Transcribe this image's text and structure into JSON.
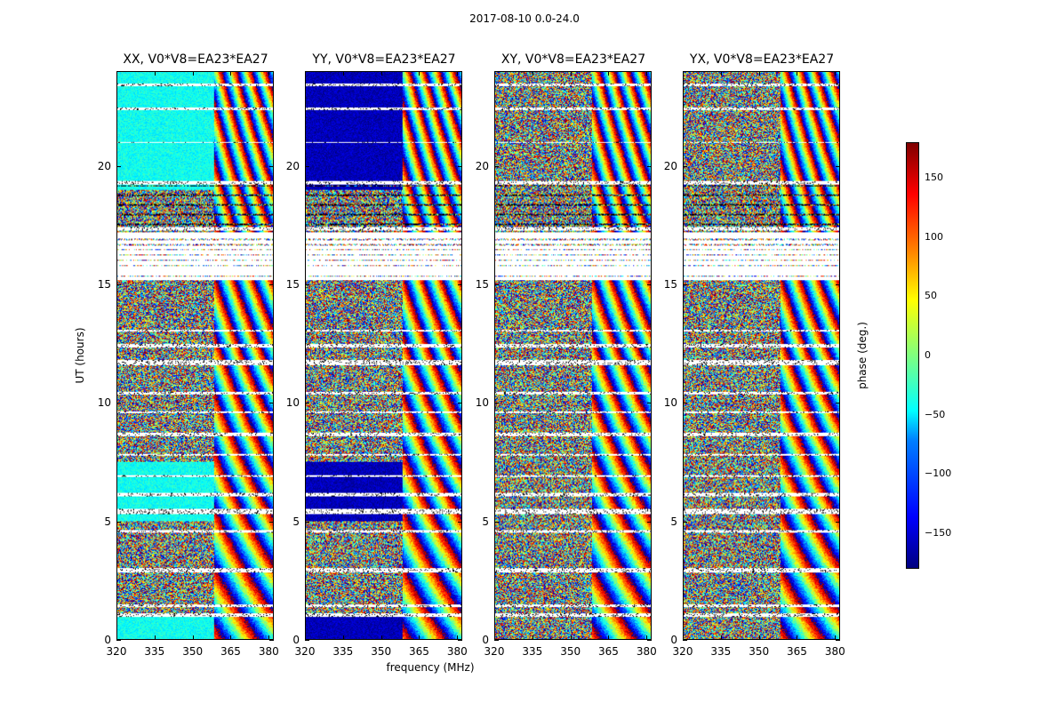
{
  "chart_data": {
    "type": "heatmap",
    "suptitle": "2017-08-10 0.0-24.0",
    "panels": [
      {
        "title": "XX, V0*V8=EA23*EA27",
        "dominant_phase_low_freq": -40,
        "seed": 11
      },
      {
        "title": "YY, V0*V8=EA23*EA27",
        "dominant_phase_low_freq": -160,
        "seed": 23
      },
      {
        "title": "XY, V0*V8=EA23*EA27",
        "dominant_phase_low_freq": 0,
        "seed": 37
      },
      {
        "title": "YX, V0*V8=EA23*EA27",
        "dominant_phase_low_freq": 0,
        "seed": 53
      }
    ],
    "x": {
      "label": "frequency (MHz)",
      "range": [
        320,
        382
      ],
      "ticks": [
        "320",
        "335",
        "350",
        "365",
        "380"
      ],
      "tick_values": [
        320,
        335,
        350,
        365,
        380
      ]
    },
    "y": {
      "label": "UT (hours)",
      "range": [
        0,
        24
      ],
      "ticks": [
        "0",
        "5",
        "10",
        "15",
        "20"
      ],
      "tick_values": [
        0,
        5,
        10,
        15,
        20
      ]
    },
    "colorbar": {
      "label": "phase (deg.)",
      "range": [
        -180,
        180
      ],
      "ticks": [
        "150",
        "100",
        "50",
        "0",
        "−50",
        "−100",
        "−150"
      ],
      "tick_values": [
        150,
        100,
        50,
        0,
        -50,
        -100,
        -150
      ],
      "colormap": "jet"
    },
    "flagged_bands_hours": [
      [
        0.95,
        1.1
      ],
      [
        1.35,
        1.45
      ],
      [
        2.8,
        3.0
      ],
      [
        4.5,
        4.6
      ],
      [
        5.3,
        5.5
      ],
      [
        6.05,
        6.2
      ],
      [
        6.85,
        6.95
      ],
      [
        7.75,
        7.85
      ],
      [
        8.6,
        8.75
      ],
      [
        9.55,
        9.65
      ],
      [
        10.35,
        10.45
      ],
      [
        11.6,
        11.8
      ],
      [
        12.35,
        12.5
      ],
      [
        13.0,
        13.1
      ],
      [
        17.3,
        17.45
      ],
      [
        19.25,
        19.4
      ],
      [
        21.0,
        21.05
      ],
      [
        22.4,
        22.5
      ],
      [
        23.4,
        23.5
      ]
    ],
    "blank_hours": [
      [
        15.2,
        17.2
      ]
    ]
  }
}
